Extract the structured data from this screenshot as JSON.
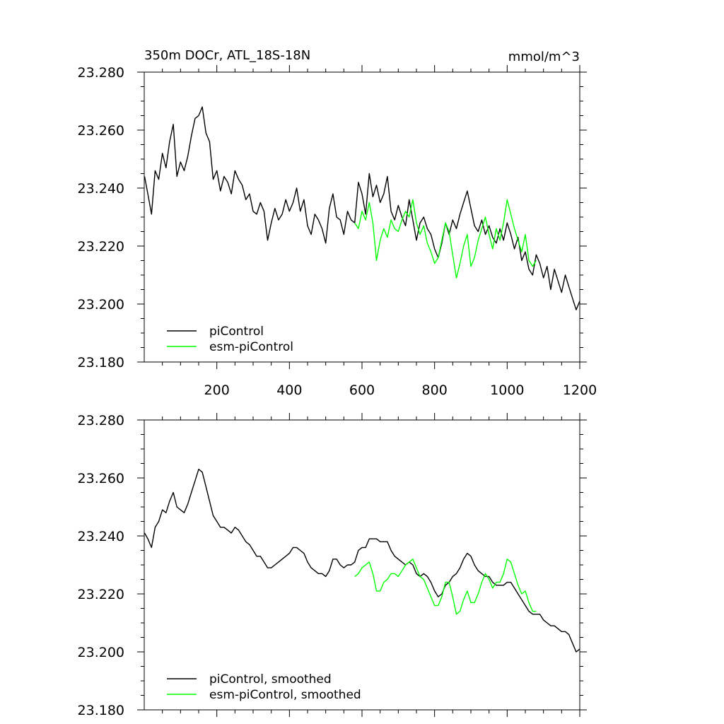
{
  "chart_data": [
    {
      "type": "line",
      "title": "350m DOCr, ATL_18S-18N",
      "units": "mmol/m^3",
      "xlim": [
        0,
        1200
      ],
      "ylim": [
        23.18,
        23.28
      ],
      "x_ticks": [
        200,
        400,
        600,
        800,
        1000,
        1200
      ],
      "x_tick_labels": [
        "200",
        "400",
        "600",
        "800",
        "1000",
        "1200"
      ],
      "y_ticks": [
        23.18,
        23.2,
        23.22,
        23.24,
        23.26,
        23.28
      ],
      "y_tick_labels": [
        "23.180",
        "23.200",
        "23.220",
        "23.240",
        "23.260",
        "23.280"
      ],
      "legend_position": "bottom-left",
      "grid": false,
      "series": [
        {
          "name": "piControl",
          "color": "#000000",
          "x": [
            1,
            10,
            20,
            30,
            40,
            50,
            60,
            70,
            80,
            90,
            100,
            110,
            120,
            130,
            140,
            150,
            160,
            170,
            180,
            190,
            200,
            210,
            220,
            230,
            240,
            250,
            260,
            270,
            280,
            290,
            300,
            310,
            320,
            330,
            340,
            350,
            360,
            370,
            380,
            390,
            400,
            410,
            420,
            430,
            440,
            450,
            460,
            470,
            480,
            490,
            500,
            510,
            520,
            530,
            540,
            550,
            560,
            570,
            580,
            590,
            600,
            610,
            620,
            630,
            640,
            650,
            660,
            670,
            680,
            690,
            700,
            710,
            720,
            730,
            740,
            750,
            760,
            770,
            780,
            790,
            800,
            810,
            820,
            830,
            840,
            850,
            860,
            870,
            880,
            890,
            900,
            910,
            920,
            930,
            940,
            950,
            960,
            970,
            980,
            990,
            1000,
            1010,
            1020,
            1030,
            1040,
            1050,
            1060,
            1070,
            1080,
            1090,
            1100,
            1110,
            1120,
            1130,
            1140,
            1150,
            1160,
            1170,
            1180,
            1190,
            1200
          ],
          "values": [
            23.244,
            23.238,
            23.231,
            23.246,
            23.243,
            23.252,
            23.247,
            23.256,
            23.262,
            23.244,
            23.249,
            23.246,
            23.251,
            23.258,
            23.264,
            23.265,
            23.268,
            23.259,
            23.256,
            23.243,
            23.246,
            23.239,
            23.244,
            23.242,
            23.238,
            23.246,
            23.243,
            23.241,
            23.236,
            23.238,
            23.232,
            23.231,
            23.235,
            23.232,
            23.222,
            23.228,
            23.233,
            23.229,
            23.231,
            23.236,
            23.232,
            23.235,
            23.24,
            23.232,
            23.236,
            23.227,
            23.224,
            23.231,
            23.229,
            23.226,
            23.221,
            23.233,
            23.238,
            23.23,
            23.229,
            23.224,
            23.232,
            23.229,
            23.228,
            23.242,
            23.238,
            23.231,
            23.245,
            23.237,
            23.241,
            23.235,
            23.238,
            23.244,
            23.232,
            23.229,
            23.234,
            23.23,
            23.227,
            23.236,
            23.229,
            23.222,
            23.228,
            23.23,
            23.226,
            23.224,
            23.219,
            23.216,
            23.221,
            23.228,
            23.224,
            23.229,
            23.226,
            23.231,
            23.235,
            23.239,
            23.233,
            23.227,
            23.225,
            23.229,
            23.224,
            23.227,
            23.223,
            23.221,
            23.226,
            23.222,
            23.228,
            23.224,
            23.219,
            23.223,
            23.215,
            23.218,
            23.212,
            23.21,
            23.217,
            23.214,
            23.209,
            23.213,
            23.205,
            23.212,
            23.208,
            23.204,
            23.21,
            23.206,
            23.202,
            23.198,
            23.201
          ]
        },
        {
          "name": "esm-piControl",
          "color": "#00ff00",
          "x": [
            580,
            590,
            600,
            610,
            620,
            630,
            640,
            650,
            660,
            670,
            680,
            690,
            700,
            710,
            720,
            730,
            740,
            750,
            760,
            770,
            780,
            790,
            800,
            810,
            820,
            830,
            840,
            850,
            860,
            870,
            880,
            890,
            900,
            910,
            920,
            930,
            940,
            950,
            960,
            970,
            980,
            990,
            1000,
            1010,
            1020,
            1030,
            1040,
            1050,
            1060,
            1070,
            1080
          ],
          "values": [
            23.228,
            23.226,
            23.232,
            23.229,
            23.235,
            23.228,
            23.215,
            23.222,
            23.226,
            23.223,
            23.229,
            23.226,
            23.225,
            23.229,
            23.232,
            23.23,
            23.236,
            23.228,
            23.224,
            23.227,
            23.221,
            23.218,
            23.214,
            23.216,
            23.222,
            23.228,
            23.225,
            23.217,
            23.209,
            23.214,
            23.22,
            23.224,
            23.213,
            23.216,
            23.222,
            23.226,
            23.23,
            23.224,
            23.219,
            23.226,
            23.222,
            23.228,
            23.236,
            23.231,
            23.226,
            23.222,
            23.218,
            23.224,
            23.215,
            23.213,
            23.215
          ]
        }
      ]
    },
    {
      "type": "line",
      "xlim": [
        0,
        1200
      ],
      "ylim": [
        23.18,
        23.28
      ],
      "y_ticks": [
        23.18,
        23.2,
        23.22,
        23.24,
        23.26,
        23.28
      ],
      "y_tick_labels": [
        "23.180",
        "23.200",
        "23.220",
        "23.240",
        "23.260",
        "23.280"
      ],
      "legend_position": "bottom-left",
      "grid": false,
      "series": [
        {
          "name": "piControl, smoothed",
          "color": "#000000",
          "x": [
            1,
            10,
            20,
            30,
            40,
            50,
            60,
            70,
            80,
            90,
            100,
            110,
            120,
            130,
            140,
            150,
            160,
            170,
            180,
            190,
            200,
            210,
            220,
            230,
            240,
            250,
            260,
            270,
            280,
            290,
            300,
            310,
            320,
            330,
            340,
            350,
            360,
            370,
            380,
            390,
            400,
            410,
            420,
            430,
            440,
            450,
            460,
            470,
            480,
            490,
            500,
            510,
            520,
            530,
            540,
            550,
            560,
            570,
            580,
            590,
            600,
            610,
            620,
            630,
            640,
            650,
            660,
            670,
            680,
            690,
            700,
            710,
            720,
            730,
            740,
            750,
            760,
            770,
            780,
            790,
            800,
            810,
            820,
            830,
            840,
            850,
            860,
            870,
            880,
            890,
            900,
            910,
            920,
            930,
            940,
            950,
            960,
            970,
            980,
            990,
            1000,
            1010,
            1020,
            1030,
            1040,
            1050,
            1060,
            1070,
            1080,
            1090,
            1100,
            1110,
            1120,
            1130,
            1140,
            1150,
            1160,
            1170,
            1180,
            1190,
            1200
          ],
          "values": [
            23.241,
            23.239,
            23.236,
            23.243,
            23.245,
            23.249,
            23.248,
            23.252,
            23.255,
            23.25,
            23.249,
            23.248,
            23.251,
            23.255,
            23.259,
            23.263,
            23.262,
            23.257,
            23.252,
            23.247,
            23.245,
            23.243,
            23.243,
            23.242,
            23.241,
            23.243,
            23.242,
            23.24,
            23.238,
            23.237,
            23.235,
            23.233,
            23.233,
            23.231,
            23.229,
            23.229,
            23.23,
            23.231,
            23.232,
            23.233,
            23.234,
            23.236,
            23.236,
            23.235,
            23.234,
            23.231,
            23.229,
            23.228,
            23.227,
            23.227,
            23.226,
            23.228,
            23.232,
            23.232,
            23.23,
            23.229,
            23.23,
            23.23,
            23.231,
            23.235,
            23.236,
            23.236,
            23.239,
            23.239,
            23.239,
            23.238,
            23.238,
            23.238,
            23.235,
            23.233,
            23.232,
            23.231,
            23.23,
            23.231,
            23.23,
            23.227,
            23.226,
            23.227,
            23.226,
            23.224,
            23.221,
            23.219,
            23.22,
            23.223,
            23.224,
            23.226,
            23.227,
            23.229,
            23.232,
            23.234,
            23.233,
            23.23,
            23.228,
            23.227,
            23.226,
            23.226,
            23.224,
            23.223,
            23.223,
            23.223,
            23.224,
            23.224,
            23.222,
            23.22,
            23.218,
            23.216,
            23.214,
            23.213,
            23.213,
            23.213,
            23.211,
            23.21,
            23.209,
            23.209,
            23.208,
            23.207,
            23.207,
            23.206,
            23.203,
            23.2,
            23.201
          ]
        },
        {
          "name": "esm-piControl, smoothed",
          "color": "#00ff00",
          "x": [
            580,
            590,
            600,
            610,
            620,
            630,
            640,
            650,
            660,
            670,
            680,
            690,
            700,
            710,
            720,
            730,
            740,
            750,
            760,
            770,
            780,
            790,
            800,
            810,
            820,
            830,
            840,
            850,
            860,
            870,
            880,
            890,
            900,
            910,
            920,
            930,
            940,
            950,
            960,
            970,
            980,
            990,
            1000,
            1010,
            1020,
            1030,
            1040,
            1050,
            1060,
            1070,
            1080
          ],
          "values": [
            23.226,
            23.227,
            23.229,
            23.23,
            23.231,
            23.227,
            23.221,
            23.221,
            23.224,
            23.225,
            23.227,
            23.227,
            23.226,
            23.228,
            23.23,
            23.231,
            23.232,
            23.229,
            23.226,
            23.225,
            23.222,
            23.219,
            23.216,
            23.216,
            23.219,
            23.224,
            23.224,
            23.219,
            23.213,
            23.214,
            23.218,
            23.221,
            23.217,
            23.217,
            23.22,
            23.224,
            23.227,
            23.225,
            23.222,
            23.224,
            23.224,
            23.227,
            23.232,
            23.231,
            23.227,
            23.223,
            23.22,
            23.221,
            23.217,
            23.214,
            23.214
          ]
        }
      ]
    }
  ]
}
